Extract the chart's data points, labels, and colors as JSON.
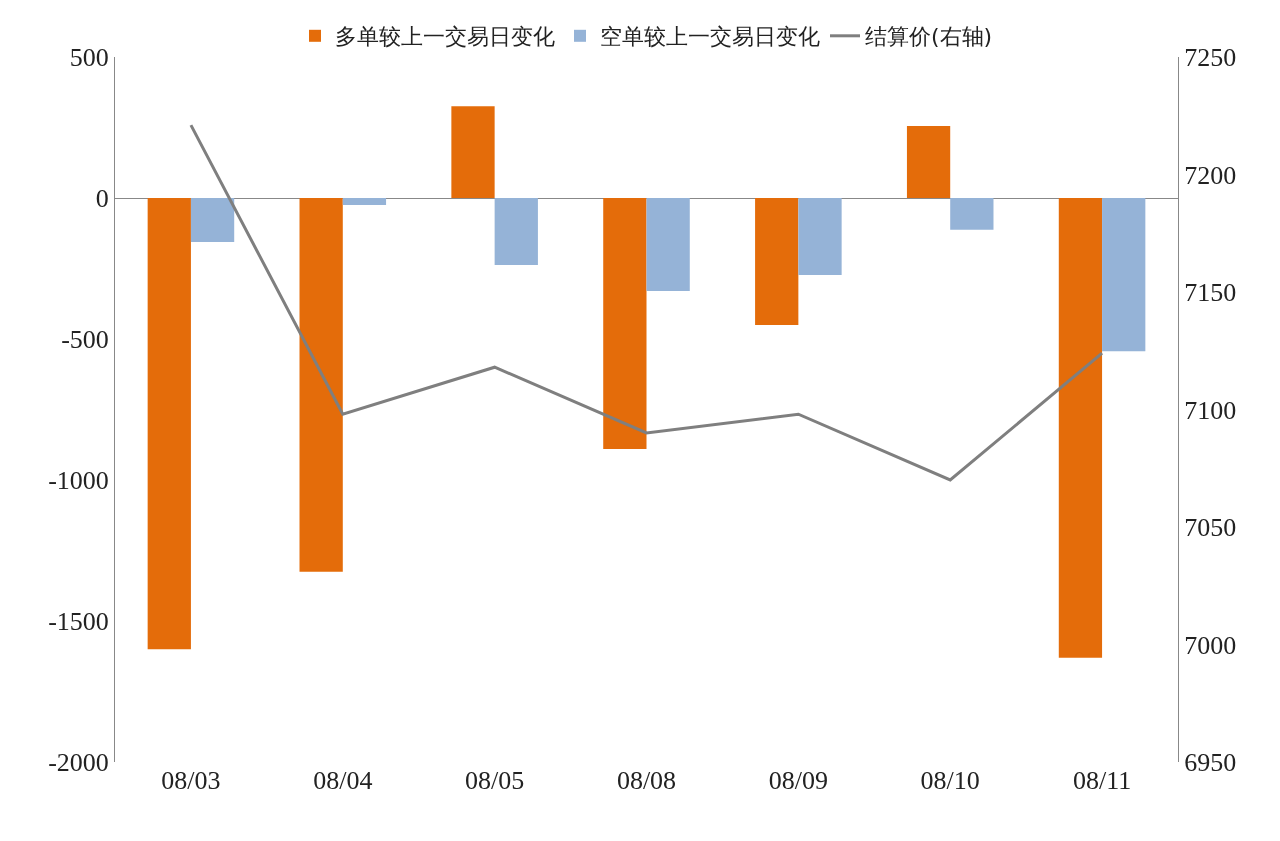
{
  "chart_data": {
    "type": "bar",
    "categories": [
      "08/03",
      "08/04",
      "08/05",
      "08/08",
      "08/09",
      "08/10",
      "08/11"
    ],
    "series": [
      {
        "name": "多单较上一交易日变化",
        "color": "#e46c0a",
        "values": [
          -1600,
          -1325,
          325,
          -890,
          -450,
          255,
          -1630
        ]
      },
      {
        "name": "空单较上一交易日变化",
        "color": "#95b3d7",
        "values": [
          -156,
          -25,
          -238,
          -330,
          -273,
          -113,
          -543
        ]
      },
      {
        "name": "结算价(右轴)",
        "type": "line",
        "axis": "y2",
        "color": "#7f7f7f",
        "values": [
          7221,
          7098,
          7118,
          7090,
          7098,
          7070,
          7124
        ]
      }
    ],
    "ylim": [
      -2000,
      500
    ],
    "yticks": [
      {
        "value": -2000,
        "label": "-2000"
      },
      {
        "value": -1500,
        "label": "-1500"
      },
      {
        "value": -1000,
        "label": "-1000"
      },
      {
        "value": -500,
        "label": "-500"
      },
      0,
      500
    ],
    "y2lim": [
      6950,
      7250
    ],
    "y2ticks": [
      6950,
      7000,
      7050,
      7100,
      7150,
      7200,
      7250
    ],
    "legend": "top",
    "marker": "none",
    "line_style": "solid"
  }
}
